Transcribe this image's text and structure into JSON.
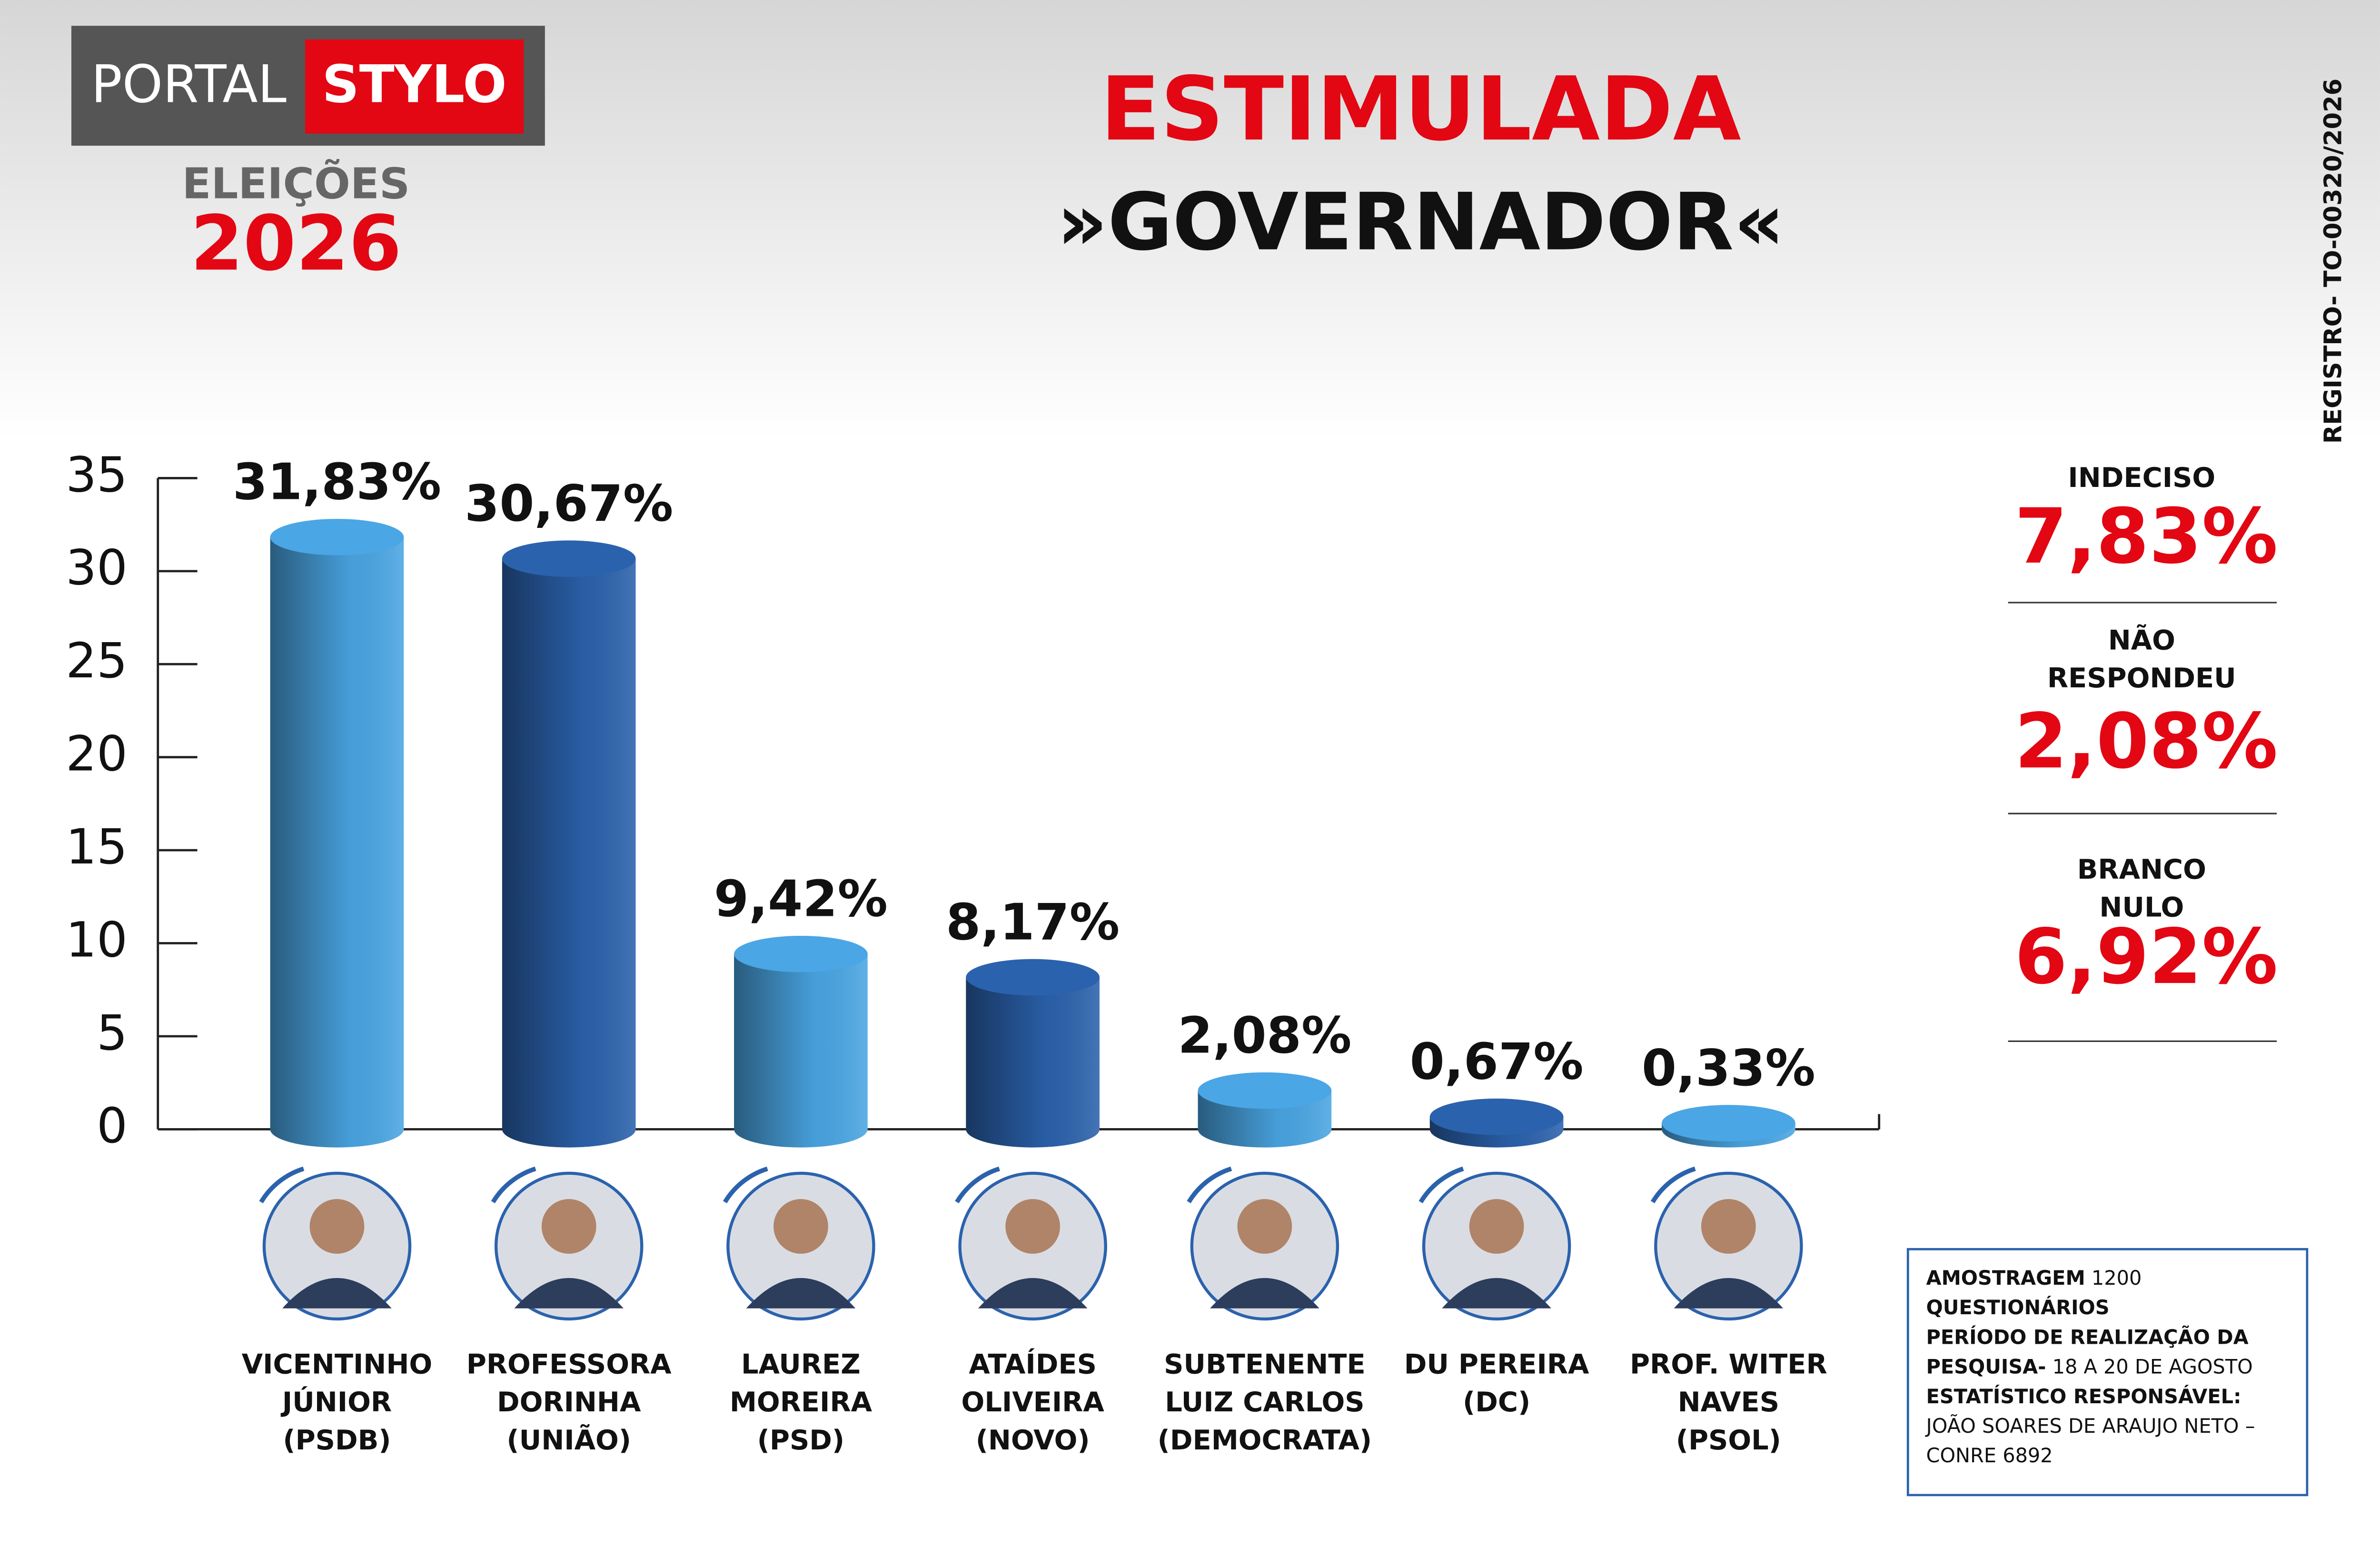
{
  "header": {
    "logo_left": "PORTAL",
    "logo_right": "STYLO",
    "elections": "ELEIÇÕES",
    "year": "2026",
    "registro": "REGISTRO-  TO-00320/2026"
  },
  "chart_data": {
    "type": "bar",
    "title": "ESTIMULADA",
    "subtitle": "»GOVERNADOR«",
    "categories": [
      [
        "VICENTINHO",
        "JÚNIOR",
        "(PSDB)"
      ],
      [
        "PROFESSORA",
        "DORINHA",
        "(UNIÃO)"
      ],
      [
        "LAUREZ",
        "MOREIRA",
        "(PSD)"
      ],
      [
        "ATAÍDES",
        "OLIVEIRA",
        "(NOVO)"
      ],
      [
        "SUBTENENTE",
        "LUIZ CARLOS",
        "(DEMOCRATA)"
      ],
      [
        "DU PEREIRA",
        "(DC)"
      ],
      [
        "PROF. WITER",
        "NAVES",
        "(PSOL)"
      ]
    ],
    "values": [
      31.83,
      30.67,
      9.42,
      8.17,
      2.08,
      0.67,
      0.33
    ],
    "value_labels": [
      "31,83%",
      "30,67%",
      "9,42%",
      "8,17%",
      "2,08%",
      "0,67%",
      "0,33%"
    ],
    "colors": [
      "#4aa6e4",
      "#2b62ad",
      "#4aa6e4",
      "#2b62ad",
      "#4aa6e4",
      "#2b62ad",
      "#4aa6e4"
    ],
    "ylim": [
      0,
      35
    ],
    "yticks": [
      0,
      5,
      10,
      15,
      20,
      25,
      30,
      35
    ]
  },
  "summary": [
    {
      "label": [
        "INDECISO"
      ],
      "value": "7,83%"
    },
    {
      "label": [
        "NÃO",
        "RESPONDEU"
      ],
      "value": "2,08%"
    },
    {
      "label": [
        "BRANCO",
        "NULO"
      ],
      "value": "6,92%"
    }
  ],
  "note": [
    [
      {
        "bold": "AMOSTRAGEM"
      },
      {
        "text": " 1200"
      }
    ],
    [
      {
        "bold": "QUESTIONÁRIOS"
      }
    ],
    [
      {
        "bold": "PERÍODO DE REALIZAÇÃO DA"
      }
    ],
    [
      {
        "bold": "PESQUISA-"
      },
      {
        "text": " 18 A 20 DE AGOSTO"
      }
    ],
    [
      {
        "bold": "ESTATÍSTICO RESPONSÁVEL:"
      }
    ],
    [
      {
        "text": "JOÃO SOARES DE ARAUJO NETO –"
      }
    ],
    [
      {
        "text": "CONRE 6892"
      }
    ]
  ]
}
